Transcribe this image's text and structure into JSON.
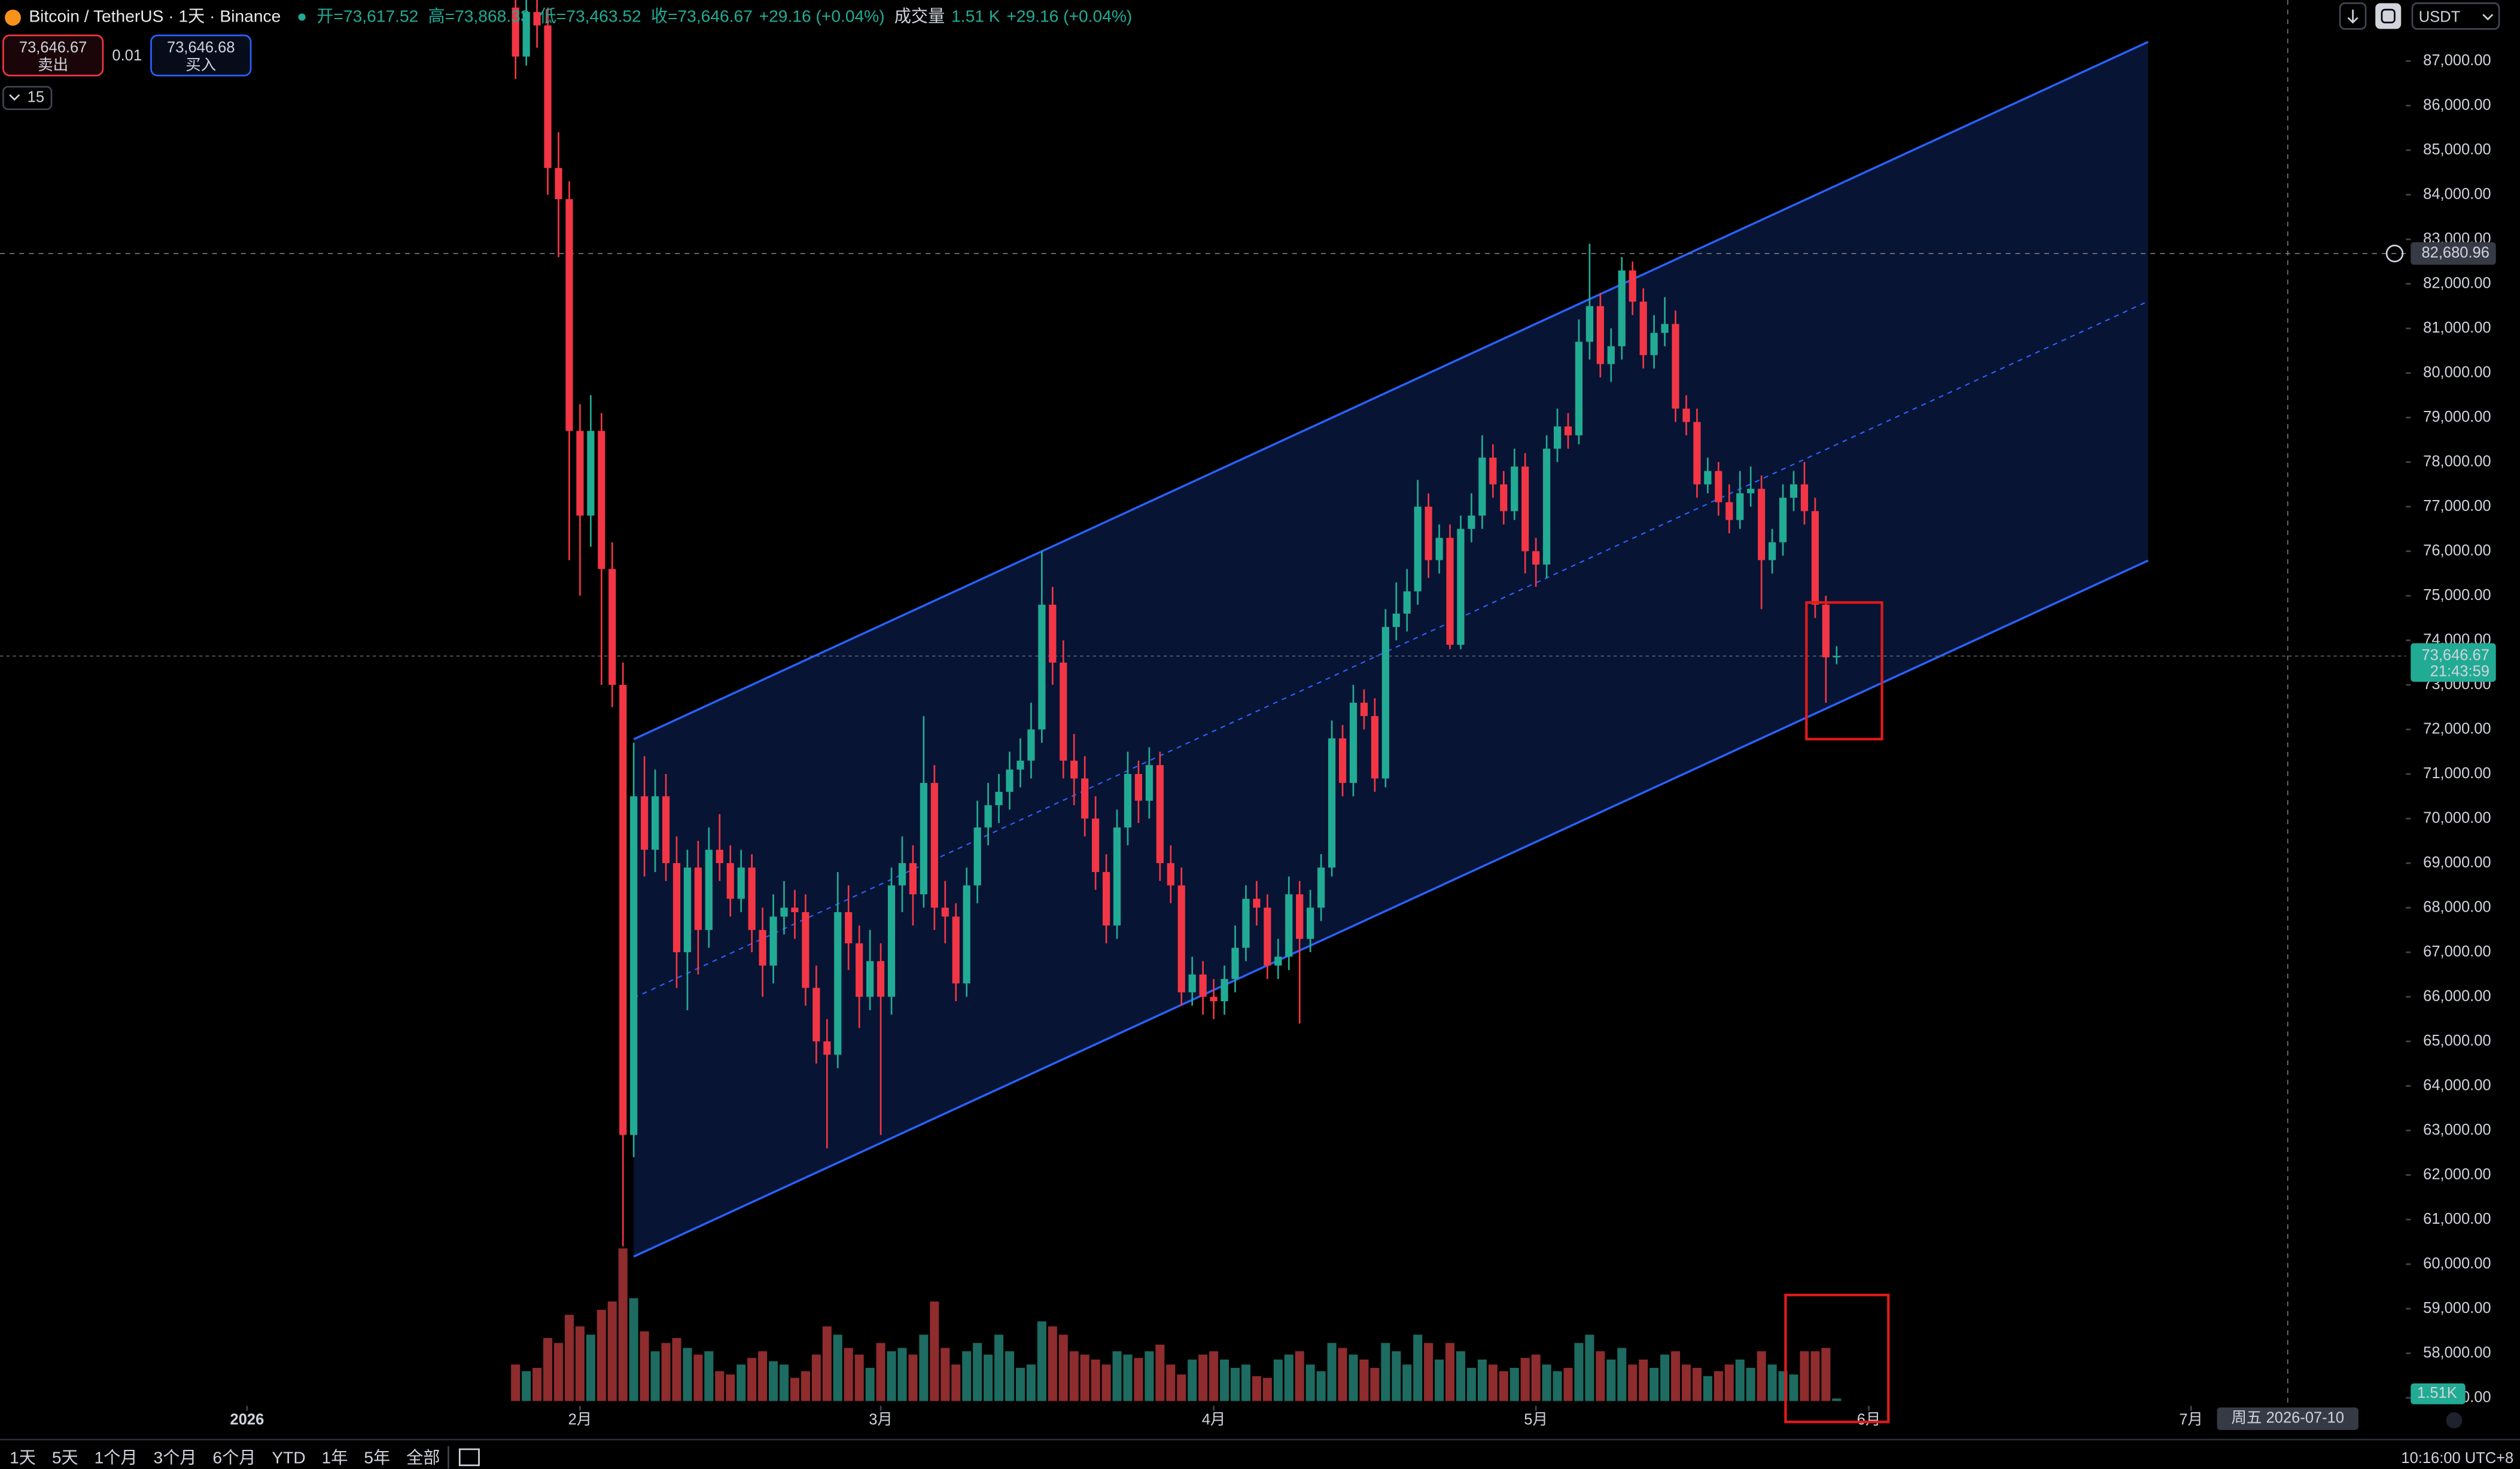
{
  "header": {
    "symbol": "Bitcoin / TetherUS · 1天 · Binance",
    "open": "开=73,617.52",
    "high": "高=73,868.33",
    "low": "低=73,463.52",
    "close": "收=73,646.67",
    "change": "+29.16 (+0.04%)",
    "volume": "成交量",
    "volume_value": "1.51 K",
    "volume_change": "+29.16 (+0.04%)"
  },
  "trade": {
    "sell_price": "73,646.67",
    "sell": "卖出",
    "spread": "0.01",
    "buy_price": "73,646.68",
    "buy": "买入"
  },
  "indicator_count": "15",
  "currency": "USDT",
  "timeframes": [
    "1天",
    "5天",
    "1个月",
    "3个月",
    "6个月",
    "YTD",
    "1年",
    "5年",
    "全部"
  ],
  "clock": "10:16:00 UTC+8",
  "chart_data": {
    "type": "candlestick",
    "up_color": "#22ab94",
    "down_color": "#f23645",
    "volume_up_color": "#1d6b61",
    "volume_down_color": "#8e2c2e",
    "xlim": [
      "2025-12-09",
      "2026-07-21"
    ],
    "ylim": [
      56820,
      88370
    ],
    "xticks": [
      {
        "value": "2026-01-01",
        "label": "2026"
      },
      {
        "value": "2026-02-01",
        "label": "2月"
      },
      {
        "value": "2026-03-01",
        "label": "3月"
      },
      {
        "value": "2026-04-01",
        "label": "4月"
      },
      {
        "value": "2026-05-01",
        "label": "5月"
      },
      {
        "value": "2026-06-01",
        "label": "6月"
      },
      {
        "value": "2026-07-01",
        "label": "7月"
      }
    ],
    "yticks": [
      {
        "value": 57000,
        "label": "57,000.00"
      },
      {
        "value": 58000,
        "label": "58,000.00"
      },
      {
        "value": 59000,
        "label": "59,000.00"
      },
      {
        "value": 60000,
        "label": "60,000.00"
      },
      {
        "value": 61000,
        "label": "61,000.00"
      },
      {
        "value": 62000,
        "label": "62,000.00"
      },
      {
        "value": 63000,
        "label": "63,000.00"
      },
      {
        "value": 64000,
        "label": "64,000.00"
      },
      {
        "value": 65000,
        "label": "65,000.00"
      },
      {
        "value": 66000,
        "label": "66,000.00"
      },
      {
        "value": 67000,
        "label": "67,000.00"
      },
      {
        "value": 68000,
        "label": "68,000.00"
      },
      {
        "value": 69000,
        "label": "69,000.00"
      },
      {
        "value": 70000,
        "label": "70,000.00"
      },
      {
        "value": 71000,
        "label": "71,000.00"
      },
      {
        "value": 72000,
        "label": "72,000.00"
      },
      {
        "value": 73000,
        "label": "73,000.00"
      },
      {
        "value": 74000,
        "label": "74,000.00"
      },
      {
        "value": 75000,
        "label": "75,000.00"
      },
      {
        "value": 76000,
        "label": "76,000.00"
      },
      {
        "value": 77000,
        "label": "77,000.00"
      },
      {
        "value": 78000,
        "label": "78,000.00"
      },
      {
        "value": 79000,
        "label": "79,000.00"
      },
      {
        "value": 80000,
        "label": "80,000.00"
      },
      {
        "value": 81000,
        "label": "81,000.00"
      },
      {
        "value": 82000,
        "label": "82,000.00"
      },
      {
        "value": 83000,
        "label": "83,000.00"
      },
      {
        "value": 84000,
        "label": "84,000.00"
      },
      {
        "value": 85000,
        "label": "85,000.00"
      },
      {
        "value": 86000,
        "label": "86,000.00"
      },
      {
        "value": 87000,
        "label": "87,000.00"
      }
    ],
    "x": [
      "2026-01-26",
      "2026-01-27",
      "2026-01-28",
      "2026-01-29",
      "2026-01-30",
      "2026-01-31",
      "2026-02-01",
      "2026-02-02",
      "2026-02-03",
      "2026-02-04",
      "2026-02-05",
      "2026-02-06",
      "2026-02-07",
      "2026-02-08",
      "2026-02-09",
      "2026-02-10",
      "2026-02-11",
      "2026-02-12",
      "2026-02-13",
      "2026-02-14",
      "2026-02-15",
      "2026-02-16",
      "2026-02-17",
      "2026-02-18",
      "2026-02-19",
      "2026-02-20",
      "2026-02-21",
      "2026-02-22",
      "2026-02-23",
      "2026-02-24",
      "2026-02-25",
      "2026-02-26",
      "2026-02-27",
      "2026-02-28",
      "2026-03-01",
      "2026-03-02",
      "2026-03-03",
      "2026-03-04",
      "2026-03-05",
      "2026-03-06",
      "2026-03-07",
      "2026-03-08",
      "2026-03-09",
      "2026-03-10",
      "2026-03-11",
      "2026-03-12",
      "2026-03-13",
      "2026-03-14",
      "2026-03-15",
      "2026-03-16",
      "2026-03-17",
      "2026-03-18",
      "2026-03-19",
      "2026-03-20",
      "2026-03-21",
      "2026-03-22",
      "2026-03-23",
      "2026-03-24",
      "2026-03-25",
      "2026-03-26",
      "2026-03-27",
      "2026-03-28",
      "2026-03-29",
      "2026-03-30",
      "2026-03-31",
      "2026-04-01",
      "2026-04-02",
      "2026-04-03",
      "2026-04-04",
      "2026-04-05",
      "2026-04-06",
      "2026-04-07",
      "2026-04-08",
      "2026-04-09",
      "2026-04-10",
      "2026-04-11",
      "2026-04-12",
      "2026-04-13",
      "2026-04-14",
      "2026-04-15",
      "2026-04-16",
      "2026-04-17",
      "2026-04-18",
      "2026-04-19",
      "2026-04-20",
      "2026-04-21",
      "2026-04-22",
      "2026-04-23",
      "2026-04-24",
      "2026-04-25",
      "2026-04-26",
      "2026-04-27",
      "2026-04-28",
      "2026-04-29",
      "2026-04-30",
      "2026-05-01",
      "2026-05-02",
      "2026-05-03",
      "2026-05-04",
      "2026-05-05",
      "2026-05-06",
      "2026-05-07",
      "2026-05-08",
      "2026-05-09",
      "2026-05-10",
      "2026-05-11",
      "2026-05-12",
      "2026-05-13",
      "2026-05-14",
      "2026-05-15",
      "2026-05-16",
      "2026-05-17",
      "2026-05-18",
      "2026-05-19",
      "2026-05-20",
      "2026-05-21",
      "2026-05-22",
      "2026-05-23",
      "2026-05-24",
      "2026-05-25",
      "2026-05-26",
      "2026-05-27",
      "2026-05-28",
      "2026-05-29"
    ],
    "open": [
      88200,
      87100,
      88100,
      87800,
      84600,
      83900,
      78700,
      76800,
      78700,
      75600,
      73000,
      62900,
      70500,
      69300,
      70500,
      69000,
      67000,
      68900,
      67500,
      69300,
      69000,
      68200,
      68900,
      67500,
      66700,
      67800,
      68000,
      67900,
      66200,
      65000,
      64700,
      67900,
      67200,
      66000,
      66800,
      66000,
      68500,
      69000,
      68300,
      70800,
      68000,
      67800,
      66300,
      68500,
      69800,
      70300,
      70600,
      71100,
      71300,
      72000,
      74800,
      73500,
      71300,
      70900,
      70000,
      68800,
      67600,
      69800,
      71000,
      70400,
      71200,
      69000,
      68500,
      66100,
      66500,
      66000,
      65900,
      66400,
      67100,
      68200,
      68000,
      66700,
      66900,
      68300,
      67300,
      68000,
      68900,
      71800,
      70800,
      72600,
      72300,
      70900,
      74300,
      74600,
      75100,
      77000,
      75800,
      76300,
      73900,
      76500,
      76800,
      78100,
      77500,
      76900,
      77900,
      76000,
      75700,
      78300,
      78800,
      78600,
      80700,
      81500,
      80200,
      80600,
      82300,
      81600,
      80400,
      80900,
      81100,
      79200,
      78900,
      77500,
      77800,
      77100,
      76700,
      77300,
      77400,
      75800,
      76200,
      77200,
      77500,
      76900,
      74800,
      73617.52
    ],
    "high": [
      89000,
      88500,
      88700,
      88200,
      85400,
      84300,
      79300,
      79500,
      79100,
      76200,
      73500,
      71700,
      71400,
      71100,
      71000,
      69600,
      69300,
      69500,
      69800,
      70100,
      69400,
      69300,
      69200,
      68000,
      68300,
      68600,
      68400,
      68300,
      66700,
      65500,
      68800,
      68500,
      67600,
      67500,
      67200,
      68900,
      69600,
      69400,
      72300,
      71200,
      68600,
      68100,
      68900,
      70400,
      70800,
      71000,
      71500,
      71800,
      72600,
      76000,
      75200,
      74000,
      71900,
      71400,
      70500,
      69200,
      70200,
      71500,
      71300,
      71600,
      71500,
      69400,
      68900,
      66900,
      66800,
      66400,
      66700,
      67600,
      68500,
      68600,
      68300,
      67300,
      68700,
      68600,
      68400,
      69200,
      72200,
      72100,
      73000,
      72900,
      72700,
      74700,
      75300,
      75600,
      77600,
      77300,
      76600,
      76600,
      76800,
      77300,
      78600,
      78400,
      77800,
      78300,
      78200,
      76300,
      78600,
      79200,
      79100,
      81200,
      82900,
      81800,
      81000,
      82600,
      82500,
      81900,
      81300,
      81700,
      81400,
      79500,
      79200,
      78100,
      78000,
      77500,
      77800,
      77900,
      77700,
      76500,
      77500,
      77800,
      78000,
      77200,
      75000,
      73868.33
    ],
    "low": [
      86600,
      86900,
      87300,
      84000,
      82600,
      75800,
      75000,
      76100,
      73000,
      72500,
      60400,
      62400,
      68700,
      68800,
      68600,
      66200,
      65700,
      66500,
      67100,
      68600,
      67800,
      67900,
      67000,
      66000,
      66300,
      67400,
      67300,
      65800,
      64500,
      62600,
      64400,
      66600,
      65300,
      65700,
      62900,
      65600,
      67900,
      67600,
      68000,
      67500,
      67200,
      65900,
      66000,
      68100,
      69400,
      69900,
      70200,
      70700,
      70900,
      71700,
      73000,
      70900,
      70300,
      69600,
      68400,
      67200,
      67300,
      69400,
      69900,
      70000,
      68600,
      68100,
      65800,
      65800,
      65600,
      65500,
      65600,
      66100,
      66800,
      67600,
      66400,
      66400,
      66600,
      65400,
      67000,
      67700,
      68700,
      70500,
      70500,
      72000,
      70600,
      70700,
      74000,
      74200,
      74800,
      75400,
      75500,
      73800,
      73800,
      76200,
      76500,
      77200,
      76600,
      76700,
      75500,
      75200,
      75400,
      78000,
      78300,
      78400,
      80300,
      79900,
      79800,
      80300,
      81300,
      80100,
      80100,
      80600,
      78900,
      78600,
      77200,
      77300,
      76800,
      76400,
      76500,
      77000,
      74700,
      75500,
      75900,
      76900,
      76600,
      74500,
      72600,
      73463.52
    ],
    "close": [
      87100,
      88100,
      87800,
      84600,
      83900,
      78700,
      76800,
      78700,
      75600,
      73000,
      62900,
      70500,
      69300,
      70500,
      69000,
      67000,
      68900,
      67500,
      69300,
      69000,
      68200,
      68900,
      67500,
      66700,
      67800,
      68000,
      67900,
      66200,
      65000,
      64700,
      67900,
      67200,
      66000,
      66800,
      66000,
      68500,
      69000,
      68300,
      70800,
      68000,
      67800,
      66300,
      68500,
      69800,
      70300,
      70600,
      71100,
      71300,
      72000,
      74800,
      73500,
      71300,
      70900,
      70000,
      68800,
      67600,
      69800,
      71000,
      70400,
      71200,
      69000,
      68500,
      66100,
      66500,
      66000,
      65900,
      66400,
      67100,
      68200,
      68000,
      66700,
      66900,
      68300,
      67300,
      68000,
      68900,
      71800,
      70800,
      72600,
      72300,
      70900,
      74300,
      74600,
      75100,
      77000,
      75800,
      76300,
      73900,
      76500,
      76800,
      78100,
      77500,
      76900,
      77900,
      76000,
      75700,
      78300,
      78800,
      78600,
      80700,
      81500,
      80200,
      80600,
      82300,
      81600,
      80400,
      80900,
      81100,
      79200,
      78900,
      77500,
      77800,
      77100,
      76700,
      77300,
      77400,
      75800,
      76200,
      77200,
      77500,
      76900,
      74800,
      73617.52,
      73646.67
    ],
    "volume": [
      22,
      18,
      20,
      38,
      35,
      52,
      45,
      40,
      55,
      60,
      92,
      62,
      42,
      30,
      35,
      38,
      32,
      28,
      30,
      18,
      16,
      22,
      26,
      30,
      24,
      22,
      14,
      18,
      28,
      45,
      40,
      32,
      28,
      20,
      35,
      30,
      32,
      28,
      40,
      60,
      32,
      22,
      30,
      35,
      28,
      40,
      30,
      20,
      22,
      48,
      45,
      40,
      30,
      28,
      25,
      22,
      30,
      28,
      26,
      30,
      34,
      22,
      16,
      25,
      28,
      30,
      25,
      20,
      22,
      15,
      14,
      25,
      28,
      30,
      22,
      18,
      35,
      32,
      28,
      25,
      20,
      35,
      30,
      22,
      40,
      35,
      25,
      35,
      30,
      20,
      25,
      22,
      18,
      20,
      26,
      28,
      22,
      18,
      20,
      35,
      40,
      30,
      25,
      32,
      22,
      25,
      20,
      28,
      30,
      22,
      20,
      15,
      18,
      22,
      25,
      20,
      30,
      22,
      18,
      16,
      30,
      30,
      32,
      1.51
    ],
    "volume_last_label": "1.51K",
    "last_price": {
      "value": 73646.67,
      "label": "73,646.67",
      "countdown": "21:43:59"
    },
    "crosshair": {
      "price": {
        "value": 82680.96,
        "label": "82,680.96"
      },
      "date": {
        "value": "2026-07-10",
        "label": "周五 2026-07-10"
      }
    },
    "channel": {
      "color": "#2962ff",
      "upper": [
        {
          "x": "2026-02-06",
          "y": 71780
        },
        {
          "x": "2026-06-27",
          "y": 87430
        }
      ],
      "lower": [
        {
          "x": "2026-02-06",
          "y": 60170
        },
        {
          "x": "2026-06-27",
          "y": 75790
        }
      ]
    }
  }
}
